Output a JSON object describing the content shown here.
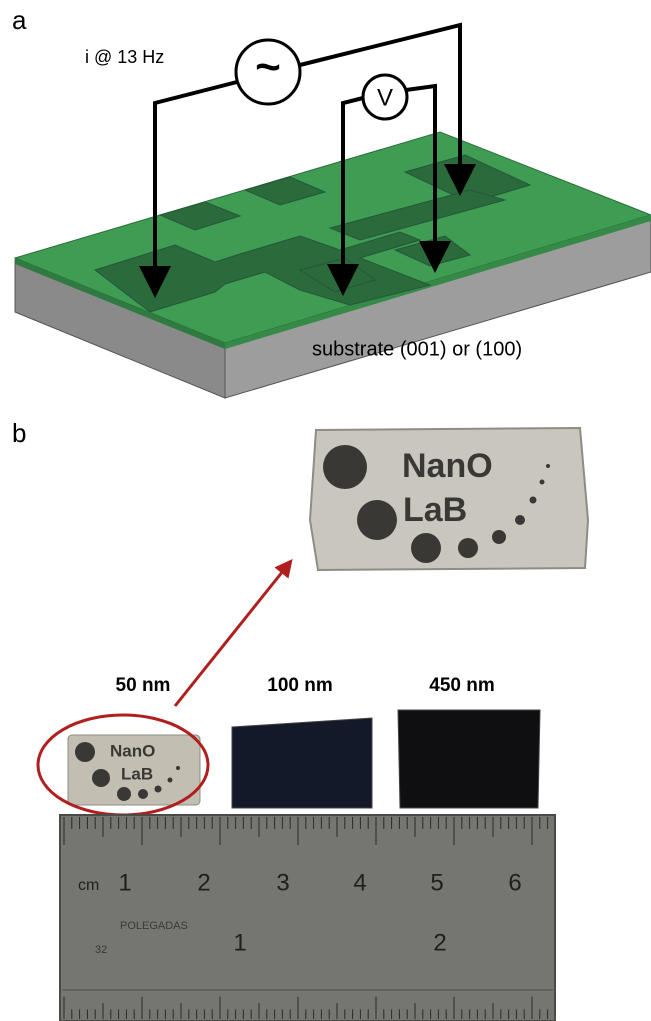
{
  "panel_a": {
    "label": "a",
    "current": "i @ 13 Hz",
    "source_symbol": "~",
    "voltmeter": "V",
    "substrate": "substrate (001) or (100)"
  },
  "panel_b": {
    "label": "b",
    "zoom_logo": {
      "line1": "NanO",
      "line2": "LaB"
    },
    "small_logo": {
      "line1": "NanO",
      "line2": "LaB"
    },
    "thicknesses": [
      "50 nm",
      "100 nm",
      "450 nm"
    ],
    "ruler": {
      "unit": "cm",
      "cm_marks": [
        "1",
        "2",
        "3",
        "4",
        "5",
        "6"
      ],
      "inch_label": "POLEGADAS",
      "inch_sub": "32",
      "inch_marks": [
        "1",
        "2"
      ]
    }
  }
}
